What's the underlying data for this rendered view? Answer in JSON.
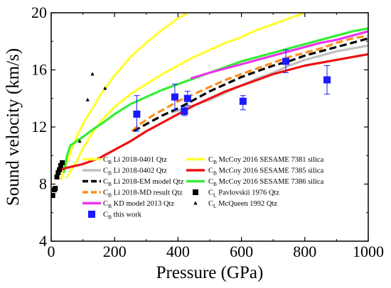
{
  "chart_data": {
    "type": "line",
    "xlabel": "Pressure (GPa)",
    "ylabel": "Sound velocity (km/s)",
    "xlim": [
      0,
      1000
    ],
    "ylim": [
      4,
      20
    ],
    "xticks": [
      "0",
      "200",
      "400",
      "600",
      "800",
      "1000"
    ],
    "yticks": [
      "4",
      "8",
      "12",
      "16",
      "20"
    ],
    "grid": false,
    "legend_position": "lower-right",
    "series": [
      {
        "label_main": "C",
        "label_sub": "B",
        "label_rest": " Li 2018-0401 Qtz",
        "color": "#ffff33",
        "style": "solid",
        "kind": "line",
        "points": [
          [
            48,
            8.4
          ],
          [
            60,
            8.9
          ],
          [
            80,
            9.6
          ],
          [
            100,
            10.5
          ],
          [
            130,
            11.6
          ],
          [
            160,
            12.5
          ],
          [
            200,
            13.4
          ],
          [
            250,
            14.3
          ],
          [
            300,
            15.0
          ],
          [
            350,
            15.7
          ],
          [
            400,
            16.3
          ],
          [
            450,
            16.9
          ],
          [
            500,
            17.4
          ],
          [
            550,
            17.9
          ],
          [
            600,
            18.3
          ],
          [
            650,
            18.8
          ],
          [
            700,
            19.2
          ],
          [
            750,
            19.6
          ],
          [
            800,
            20.0
          ]
        ]
      },
      {
        "label_main": "C",
        "label_sub": "B",
        "label_rest": " Li 2018-0402 Qtz",
        "color": "#c0c0c0",
        "style": "solid",
        "kind": "line",
        "points": [
          [
            380,
            13.0
          ],
          [
            450,
            13.5
          ],
          [
            500,
            13.9
          ],
          [
            550,
            14.4
          ],
          [
            600,
            14.9
          ],
          [
            650,
            15.4
          ],
          [
            700,
            15.8
          ],
          [
            750,
            16.3
          ],
          [
            800,
            16.7
          ],
          [
            850,
            17.0
          ],
          [
            900,
            17.3
          ],
          [
            1000,
            17.7
          ]
        ]
      },
      {
        "label_main": "C",
        "label_sub": "B",
        "label_rest": " Li 2018-EM model Qtz",
        "color": "#000000",
        "style": "dashed",
        "kind": "line",
        "points": [
          [
            260,
            11.7
          ],
          [
            300,
            12.2
          ],
          [
            350,
            12.8
          ],
          [
            400,
            13.3
          ],
          [
            450,
            13.9
          ],
          [
            500,
            14.5
          ],
          [
            550,
            15.0
          ],
          [
            600,
            15.5
          ],
          [
            650,
            15.9
          ],
          [
            700,
            16.3
          ],
          [
            750,
            16.6
          ],
          [
            800,
            17.0
          ],
          [
            850,
            17.3
          ],
          [
            900,
            17.6
          ],
          [
            950,
            17.9
          ],
          [
            1000,
            18.2
          ]
        ]
      },
      {
        "label_main": "C",
        "label_sub": "B",
        "label_rest": " Li 2018-MD result Qtz",
        "color": "#ff8c1a",
        "style": "dashed",
        "kind": "line",
        "points": [
          [
            255,
            11.7
          ],
          [
            280,
            12.2
          ],
          [
            320,
            12.8
          ],
          [
            360,
            13.3
          ],
          [
            400,
            13.8
          ],
          [
            450,
            14.3
          ],
          [
            500,
            14.8
          ],
          [
            550,
            15.3
          ],
          [
            600,
            15.7
          ],
          [
            650,
            16.1
          ],
          [
            700,
            16.5
          ],
          [
            750,
            16.9
          ],
          [
            800,
            17.2
          ],
          [
            850,
            17.5
          ],
          [
            900,
            17.9
          ],
          [
            950,
            18.2
          ],
          [
            1000,
            18.4
          ]
        ]
      },
      {
        "label_main": "C",
        "label_sub": "B",
        "label_rest": " KD model 2013 Qtz",
        "color": "#ee33ee",
        "style": "solid",
        "kind": "line",
        "points": [
          [
            440,
            15.4
          ],
          [
            500,
            15.8
          ],
          [
            550,
            16.1
          ],
          [
            600,
            16.4
          ],
          [
            650,
            16.7
          ],
          [
            700,
            17.0
          ],
          [
            750,
            17.3
          ],
          [
            800,
            17.6
          ],
          [
            850,
            17.9
          ],
          [
            900,
            18.1
          ],
          [
            950,
            18.4
          ],
          [
            1000,
            18.7
          ]
        ]
      },
      {
        "label_main": "C",
        "label_sub": "B",
        "label_rest": " this work",
        "color": "#1a1aff",
        "style": "none",
        "kind": "squares",
        "points": [
          [
            270,
            12.9
          ],
          [
            390,
            14.1
          ],
          [
            420,
            13.1
          ],
          [
            430,
            14.0
          ],
          [
            605,
            13.8
          ],
          [
            740,
            16.6
          ],
          [
            870,
            15.3
          ]
        ],
        "errors": [
          [
            1.3,
            1.2
          ],
          [
            0.9,
            0.9
          ],
          [
            0.3,
            0.3
          ],
          [
            0.5,
            0.5
          ],
          [
            0.4,
            0.6
          ],
          [
            0.8,
            0.8
          ],
          [
            1.0,
            1.0
          ]
        ]
      },
      {
        "label_main": "C",
        "label_sub": "B",
        "label_rest": " McCoy 2016 SESAME 7381 silica",
        "color": "#ffff33",
        "style": "solid",
        "kind": "line",
        "points": [
          [
            30,
            8.3
          ],
          [
            45,
            9.2
          ],
          [
            60,
            10.2
          ],
          [
            80,
            11.3
          ],
          [
            100,
            12.2
          ],
          [
            130,
            13.3
          ],
          [
            160,
            14.4
          ],
          [
            200,
            15.6
          ],
          [
            250,
            16.9
          ],
          [
            300,
            17.9
          ],
          [
            350,
            18.8
          ],
          [
            400,
            19.6
          ],
          [
            430,
            20.0
          ]
        ]
      },
      {
        "label_main": "C",
        "label_sub": "B",
        "label_rest": " McCoy 2016 SESAME 7385 silica",
        "color": "#ee1111",
        "style": "solid",
        "kind": "line",
        "points": [
          [
            30,
            9.0
          ],
          [
            50,
            9.15
          ],
          [
            100,
            9.4
          ],
          [
            150,
            9.8
          ],
          [
            200,
            10.4
          ],
          [
            250,
            11.0
          ],
          [
            300,
            11.7
          ],
          [
            350,
            12.3
          ],
          [
            400,
            12.9
          ],
          [
            450,
            13.5
          ],
          [
            500,
            14.0
          ],
          [
            550,
            14.5
          ],
          [
            600,
            14.9
          ],
          [
            650,
            15.3
          ],
          [
            700,
            15.7
          ],
          [
            750,
            16.0
          ],
          [
            800,
            16.3
          ],
          [
            850,
            16.5
          ],
          [
            900,
            16.7
          ],
          [
            1000,
            17.1
          ]
        ]
      },
      {
        "label_main": "C",
        "label_sub": "B",
        "label_rest": " McCoy 2016 SESAME 7386 silica",
        "color": "#33ee33",
        "style": "solid",
        "kind": "line",
        "points": [
          [
            40,
            8.8
          ],
          [
            50,
            10.0
          ],
          [
            60,
            10.7
          ],
          [
            80,
            11.0
          ],
          [
            100,
            11.3
          ],
          [
            130,
            11.8
          ],
          [
            170,
            12.4
          ],
          [
            200,
            12.9
          ],
          [
            250,
            13.6
          ],
          [
            300,
            14.1
          ],
          [
            350,
            14.6
          ],
          [
            400,
            15.0
          ],
          [
            450,
            15.4
          ],
          [
            500,
            15.8
          ],
          [
            550,
            16.2
          ],
          [
            600,
            16.6
          ],
          [
            650,
            16.9
          ],
          [
            700,
            17.2
          ],
          [
            750,
            17.5
          ],
          [
            800,
            17.8
          ],
          [
            850,
            18.1
          ],
          [
            900,
            18.4
          ],
          [
            950,
            18.7
          ],
          [
            1000,
            18.9
          ]
        ]
      },
      {
        "label_main": "C",
        "label_sub": "L",
        "label_rest": " Pavlovskii 1976 Qtz",
        "color": "#000000",
        "style": "none",
        "kind": "squares-small",
        "points": [
          [
            5,
            7.2
          ],
          [
            10,
            7.6
          ],
          [
            13,
            7.7
          ],
          [
            18,
            8.5
          ],
          [
            22,
            8.8
          ],
          [
            26,
            9.0
          ],
          [
            30,
            9.3
          ],
          [
            35,
            9.5
          ]
        ]
      },
      {
        "label_main": "C",
        "label_sub": "L",
        "label_rest": " McQueen 1992 Qtz",
        "color": "#000000",
        "style": "none",
        "kind": "triangles",
        "points": [
          [
            90,
            11.0
          ],
          [
            115,
            13.9
          ],
          [
            130,
            15.7
          ],
          [
            170,
            14.7
          ]
        ]
      }
    ]
  }
}
